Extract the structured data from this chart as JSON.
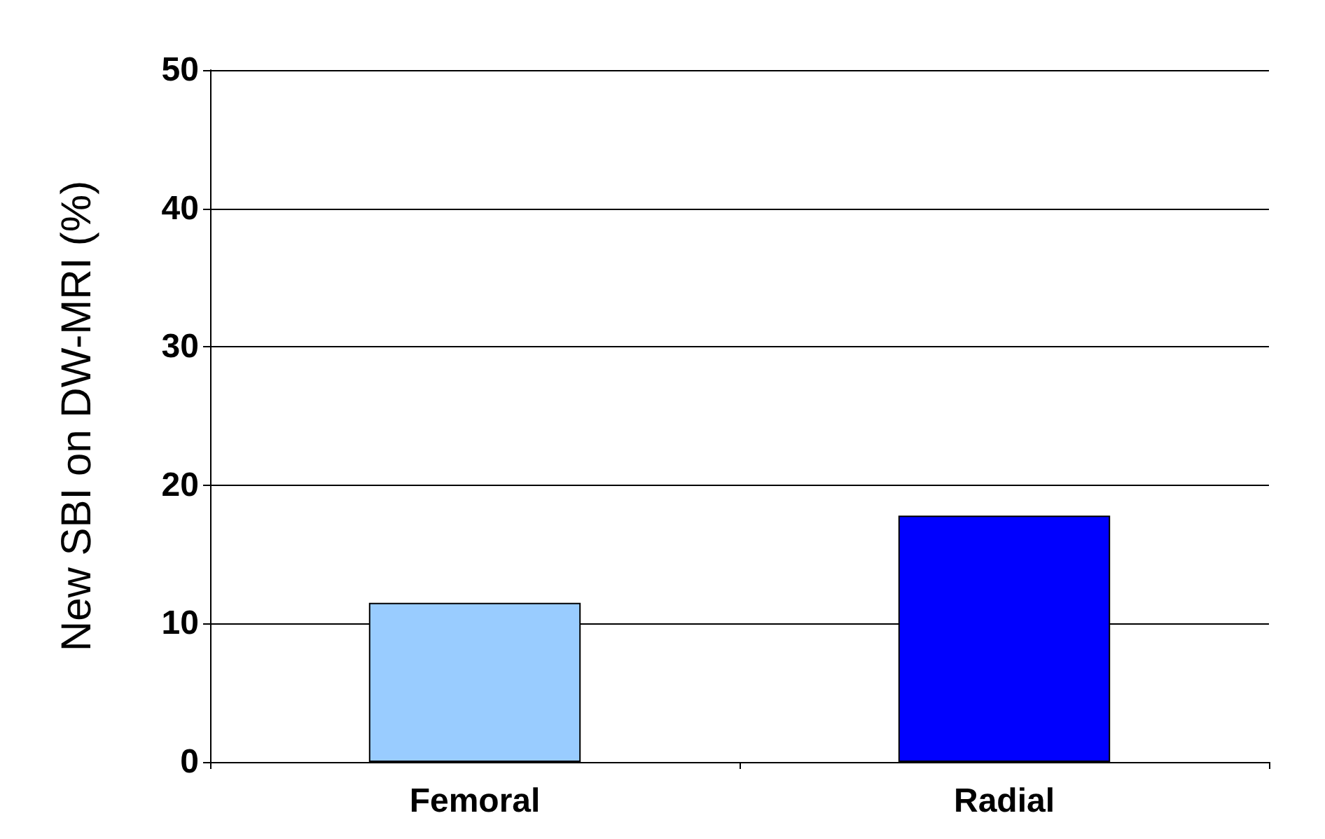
{
  "chart_data": {
    "type": "bar",
    "ylabel": "New SBI on DW-MRI (%)",
    "categories": [
      "Femoral",
      "Radial"
    ],
    "values": [
      11.5,
      17.8
    ],
    "colors": [
      "#99ccff",
      "#0000ff"
    ],
    "ylim": [
      0,
      50
    ],
    "yticks": [
      0,
      10,
      20,
      30,
      40,
      50
    ],
    "grid": "y"
  }
}
